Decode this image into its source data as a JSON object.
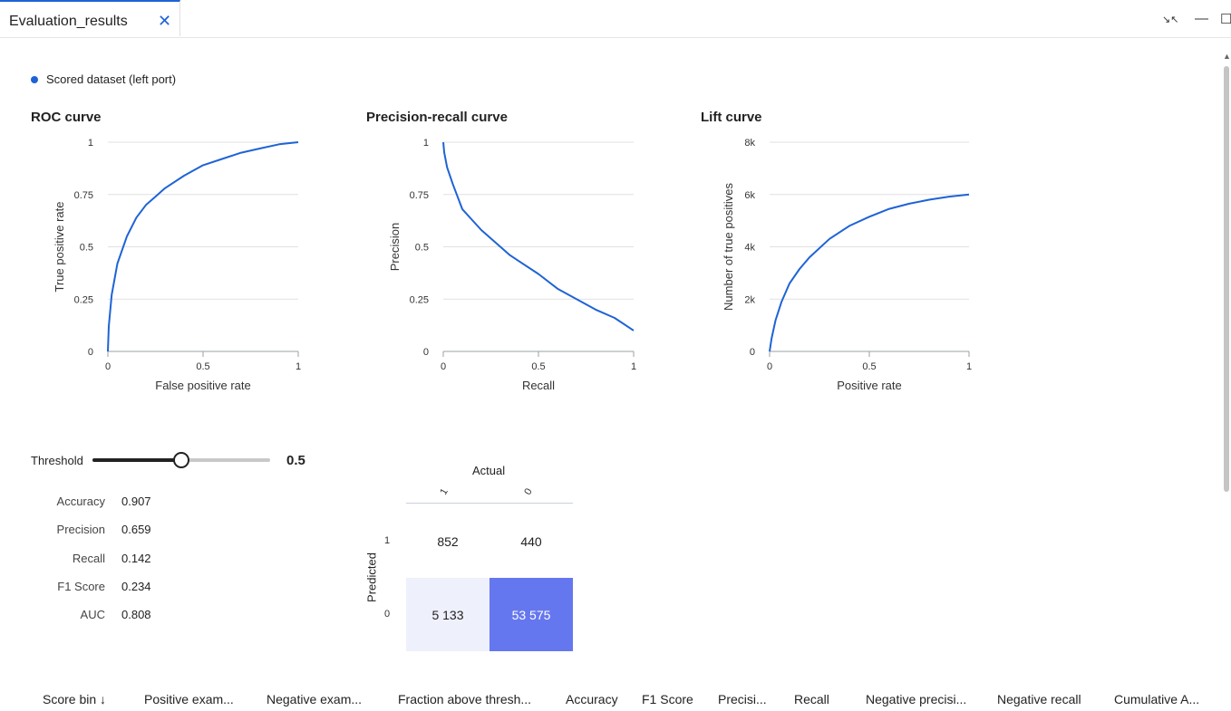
{
  "tab": {
    "label": "Evaluation_results",
    "close_glyph": "✕"
  },
  "window": {
    "collapse_glyph": "↘↖",
    "minimize_glyph": "—",
    "maximize_glyph": "☐"
  },
  "legend": {
    "label": "Scored dataset (left port)",
    "color": "#1e63d6"
  },
  "charts": {
    "roc": {
      "title": "ROC curve"
    },
    "pr": {
      "title": "Precision-recall curve"
    },
    "lift": {
      "title": "Lift curve"
    }
  },
  "chart_data": [
    {
      "type": "line",
      "title": "ROC curve",
      "xlabel": "False positive rate",
      "ylabel": "True positive rate",
      "xlim": [
        0,
        1
      ],
      "ylim": [
        0,
        1
      ],
      "xticks": [
        "0",
        "0.5",
        "1"
      ],
      "yticks": [
        "0",
        "0.25",
        "0.5",
        "0.75",
        "1"
      ],
      "grid": "horizontal",
      "series": [
        {
          "color": "#1e63d6",
          "x": [
            0,
            0.005,
            0.02,
            0.05,
            0.1,
            0.15,
            0.2,
            0.25,
            0.3,
            0.4,
            0.5,
            0.6,
            0.7,
            0.8,
            0.9,
            1.0
          ],
          "y": [
            0,
            0.12,
            0.27,
            0.42,
            0.55,
            0.64,
            0.7,
            0.74,
            0.78,
            0.84,
            0.89,
            0.92,
            0.95,
            0.97,
            0.99,
            1.0
          ]
        }
      ]
    },
    {
      "type": "line",
      "title": "Precision-recall curve",
      "xlabel": "Recall",
      "ylabel": "Precision",
      "xlim": [
        0,
        1
      ],
      "ylim": [
        0,
        1
      ],
      "xticks": [
        "0",
        "0.5",
        "1"
      ],
      "yticks": [
        "0",
        "0.25",
        "0.5",
        "0.75",
        "1"
      ],
      "grid": "horizontal",
      "series": [
        {
          "color": "#1e63d6",
          "x": [
            0,
            0.005,
            0.02,
            0.05,
            0.1,
            0.15,
            0.2,
            0.25,
            0.3,
            0.35,
            0.4,
            0.5,
            0.6,
            0.7,
            0.8,
            0.9,
            1.0
          ],
          "y": [
            1.0,
            0.95,
            0.88,
            0.8,
            0.68,
            0.63,
            0.58,
            0.54,
            0.5,
            0.46,
            0.43,
            0.37,
            0.3,
            0.25,
            0.2,
            0.16,
            0.1
          ]
        }
      ]
    },
    {
      "type": "line",
      "title": "Lift curve",
      "xlabel": "Positive rate",
      "ylabel": "Number of true positives",
      "xlim": [
        0,
        1
      ],
      "ylim": [
        0,
        8000
      ],
      "xticks": [
        "0",
        "0.5",
        "1"
      ],
      "yticks": [
        "0",
        "2k",
        "4k",
        "6k",
        "8k"
      ],
      "grid": "horizontal",
      "series": [
        {
          "color": "#1e63d6",
          "x": [
            0,
            0.01,
            0.03,
            0.06,
            0.1,
            0.15,
            0.2,
            0.3,
            0.4,
            0.5,
            0.6,
            0.7,
            0.8,
            0.9,
            1.0
          ],
          "y": [
            0,
            500,
            1200,
            1900,
            2600,
            3150,
            3600,
            4300,
            4800,
            5150,
            5450,
            5650,
            5800,
            5920,
            6000
          ]
        }
      ]
    }
  ],
  "threshold": {
    "label": "Threshold",
    "value": "0.5",
    "fraction": 0.5
  },
  "metrics": [
    {
      "name": "Accuracy",
      "value": "0.907"
    },
    {
      "name": "Precision",
      "value": "0.659"
    },
    {
      "name": "Recall",
      "value": "0.142"
    },
    {
      "name": "F1 Score",
      "value": "0.234"
    },
    {
      "name": "AUC",
      "value": "0.808"
    }
  ],
  "confusion_matrix": {
    "actual_label": "Actual",
    "predicted_label": "Predicted",
    "col_labels": [
      "1",
      "0"
    ],
    "row_labels": [
      "1",
      "0"
    ],
    "cells": [
      {
        "value": "852",
        "bg": "#ffffff",
        "fg": "#222222"
      },
      {
        "value": "440",
        "bg": "#ffffff",
        "fg": "#222222"
      },
      {
        "value": "5 133",
        "bg": "#eef0fb",
        "fg": "#222222"
      },
      {
        "value": "53 575",
        "bg": "#6577ee",
        "fg": "#ffffff"
      }
    ]
  },
  "table": {
    "columns": [
      "Score bin ↓",
      "Positive exam...",
      "Negative exam...",
      "Fraction above thresh...",
      "Accuracy",
      "F1 Score",
      "Precisi...",
      "Recall",
      "Negative precisi...",
      "Negative recall",
      "Cumulative A..."
    ]
  }
}
